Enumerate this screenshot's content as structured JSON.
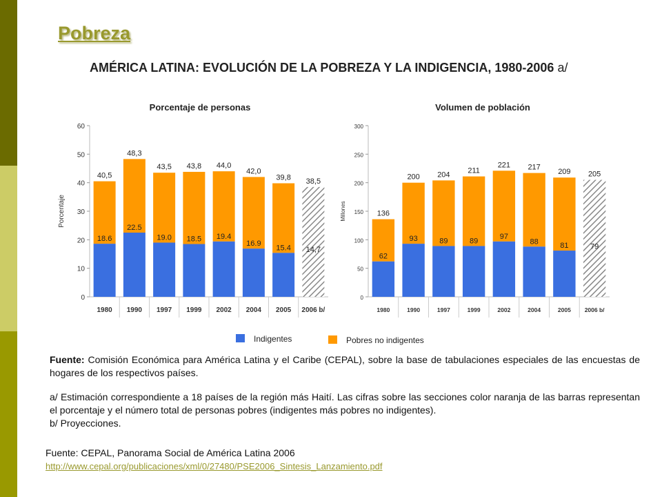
{
  "slide": {
    "title": "Pobreza",
    "source_label": "Fuente: CEPAL, Panorama Social de América Latina 2006",
    "source_link": "http://www.cepal.org/publicaciones/xml/0/27480/PSE2006_Sintesis_Lanzamiento.pdf"
  },
  "figure": {
    "title": "AMÉRICA LATINA: EVOLUCIÓN DE LA POBREZA Y LA INDIGENCIA, 1980-2006",
    "title_note": "a/",
    "legend": [
      "Indigentes",
      "Pobres no indigentes"
    ],
    "fuente_label": "Fuente:",
    "fuente_text": "Comisión Económica para América Latina y el Caribe (CEPAL), sobre la base de tabulaciones especiales de las encuestas de hogares de los respectivos países.",
    "note_a": "a/ Estimación correspondiente a 18 países de la región más Haití. Las cifras sobre las secciones color naranja de las barras representan el porcentaje y el número total de personas pobres (indigentes más pobres no indigentes).",
    "note_b": "b/ Proyecciones.",
    "colors": {
      "indigentes": "#3a6fe0",
      "pobres": "#ff9900",
      "projection": "#888888"
    }
  },
  "chart_data": [
    {
      "type": "bar",
      "title": "Porcentaje de personas",
      "ylabel": "Porcentaje",
      "categories": [
        "1980",
        "1990",
        "1997",
        "1999",
        "2002",
        "2004",
        "2005",
        "2006 b/"
      ],
      "ylim": [
        0,
        60
      ],
      "yticks": [
        0,
        10,
        20,
        30,
        40,
        50,
        60
      ],
      "series": [
        {
          "name": "Indigentes",
          "values": [
            18.6,
            22.5,
            19.0,
            18.5,
            19.4,
            16.9,
            15.4,
            14.7
          ],
          "labels": [
            "18.6",
            "22.5",
            "19.0",
            "18.5",
            "19.4",
            "16.9",
            "15.4",
            "14,7"
          ]
        },
        {
          "name": "Pobres no indigentes",
          "totals": [
            40.5,
            48.3,
            43.5,
            43.8,
            44.0,
            42.0,
            39.8,
            38.5
          ],
          "labels": [
            "40,5",
            "48,3",
            "43,5",
            "43,8",
            "44,0",
            "42,0",
            "39,8",
            "38,5"
          ]
        }
      ],
      "projection_index": 7
    },
    {
      "type": "bar",
      "title": "Volumen de población",
      "ylabel": "Millones",
      "categories": [
        "1980",
        "1990",
        "1997",
        "1999",
        "2002",
        "2004",
        "2005",
        "2006 b/"
      ],
      "ylim": [
        0,
        300
      ],
      "yticks": [
        0,
        50,
        100,
        150,
        200,
        250,
        300
      ],
      "series": [
        {
          "name": "Indigentes",
          "values": [
            62,
            93,
            89,
            89,
            97,
            88,
            81,
            79
          ],
          "labels": [
            "62",
            "93",
            "89",
            "89",
            "97",
            "88",
            "81",
            "79"
          ]
        },
        {
          "name": "Pobres no indigentes",
          "totals": [
            136,
            200,
            204,
            211,
            221,
            217,
            209,
            205
          ],
          "labels": [
            "136",
            "200",
            "204",
            "211",
            "221",
            "217",
            "209",
            "205"
          ]
        }
      ],
      "projection_index": 7
    }
  ]
}
